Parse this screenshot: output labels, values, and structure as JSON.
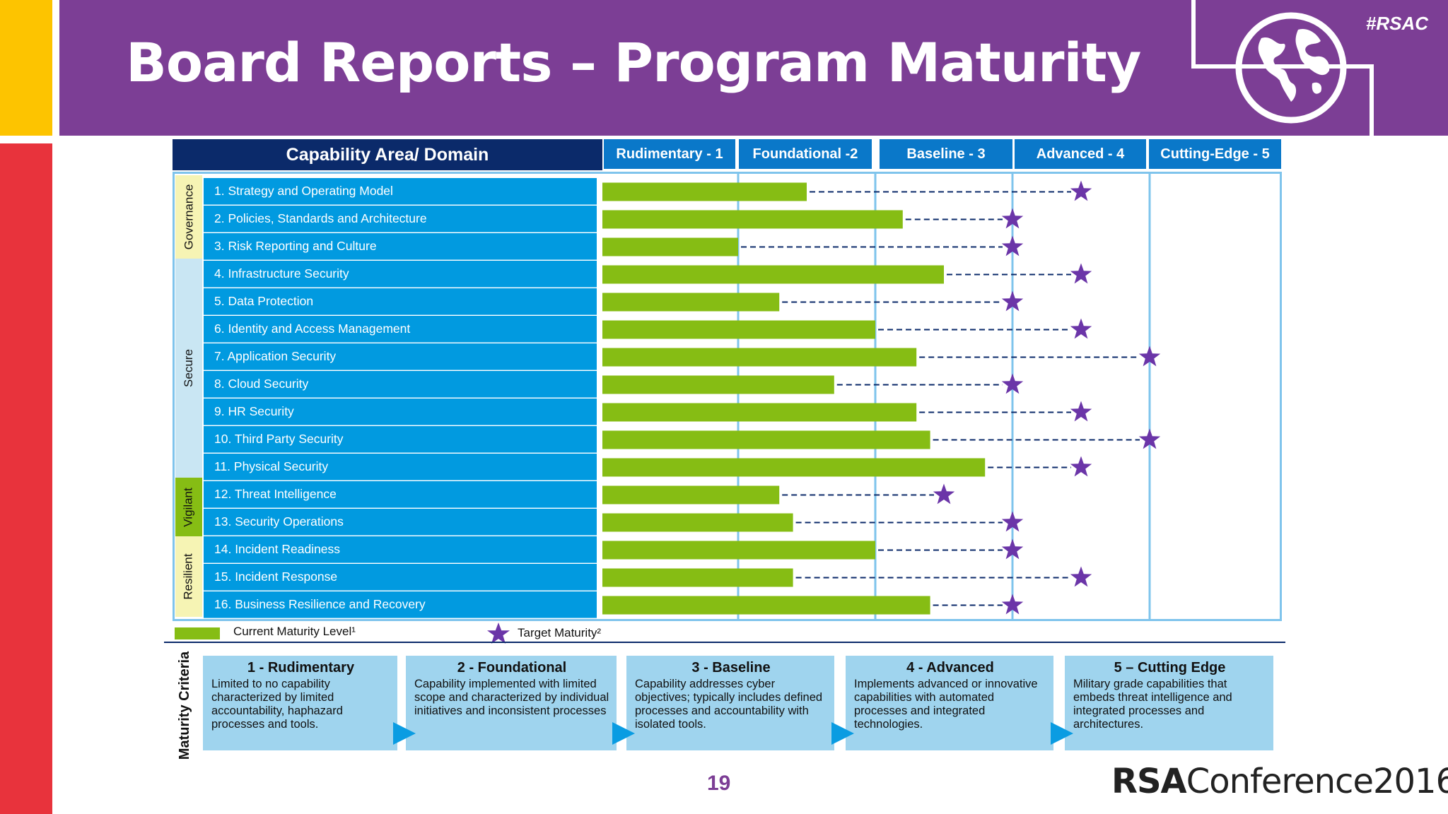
{
  "slide": {
    "title": "Board Reports – Program Maturity",
    "tag": "#RSAC",
    "page_number": "19",
    "brand_bold": "RSA",
    "brand_rest": "Conference2016",
    "accent_purple": "#7c3e95",
    "accent_yellow": "#fdc400",
    "accent_red": "#e8333c"
  },
  "table": {
    "domain_header": "Capability Area/ Domain",
    "groups": [
      "Governance",
      "Secure",
      "Vigilant",
      "Resilient"
    ]
  },
  "legend": {
    "current": "Current Maturity Level¹",
    "target": "Target Maturity²",
    "current_color": "#86bd14",
    "target_color": "#6b35a8"
  },
  "criteria": {
    "label": "Maturity Criteria",
    "items": [
      {
        "title": "1 - Rudimentary",
        "text": "Limited to no capability characterized by limited accountability, haphazard processes and tools."
      },
      {
        "title": "2 - Foundational",
        "text": "Capability implemented with limited scope and characterized by individual initiatives and inconsistent processes"
      },
      {
        "title": "3 - Baseline",
        "text": "Capability addresses cyber objectives; typically includes defined processes and accountability with isolated tools."
      },
      {
        "title": "4 - Advanced",
        "text": "Implements advanced or innovative capabilities with automated processes and integrated technologies."
      },
      {
        "title": "5 – Cutting Edge",
        "text": "Military grade capabilities that embeds threat intelligence and integrated processes and architectures."
      }
    ]
  },
  "chart_data": {
    "type": "bar",
    "orientation": "horizontal",
    "x_scale_labels": [
      "Rudimentary - 1",
      "Foundational -2",
      "Baseline - 3",
      "Advanced - 4",
      "Cutting-Edge - 5"
    ],
    "xlim": [
      0,
      5
    ],
    "categories": [
      "1. Strategy and Operating Model",
      "2. Policies, Standards and Architecture",
      "3. Risk Reporting and Culture",
      "4. Infrastructure Security",
      "5. Data Protection",
      "6. Identity and Access Management",
      "7. Application Security",
      "8. Cloud Security",
      "9. HR Security",
      "10. Third Party Security",
      "11. Physical Security",
      "12. Threat Intelligence",
      "13. Security Operations",
      "14. Incident Readiness",
      "15. Incident Response",
      "16. Business Resilience and Recovery"
    ],
    "series": [
      {
        "name": "Current Maturity Level¹",
        "values": [
          1.5,
          2.2,
          1.0,
          2.5,
          1.3,
          2.0,
          2.3,
          1.7,
          2.3,
          2.4,
          2.8,
          1.3,
          1.4,
          2.0,
          1.4,
          2.4
        ]
      },
      {
        "name": "Target Maturity²",
        "values": [
          3.5,
          3.0,
          3.0,
          3.5,
          3.0,
          3.5,
          4.0,
          3.0,
          3.5,
          4.0,
          3.5,
          2.5,
          3.0,
          3.0,
          3.5,
          3.0
        ]
      }
    ]
  }
}
